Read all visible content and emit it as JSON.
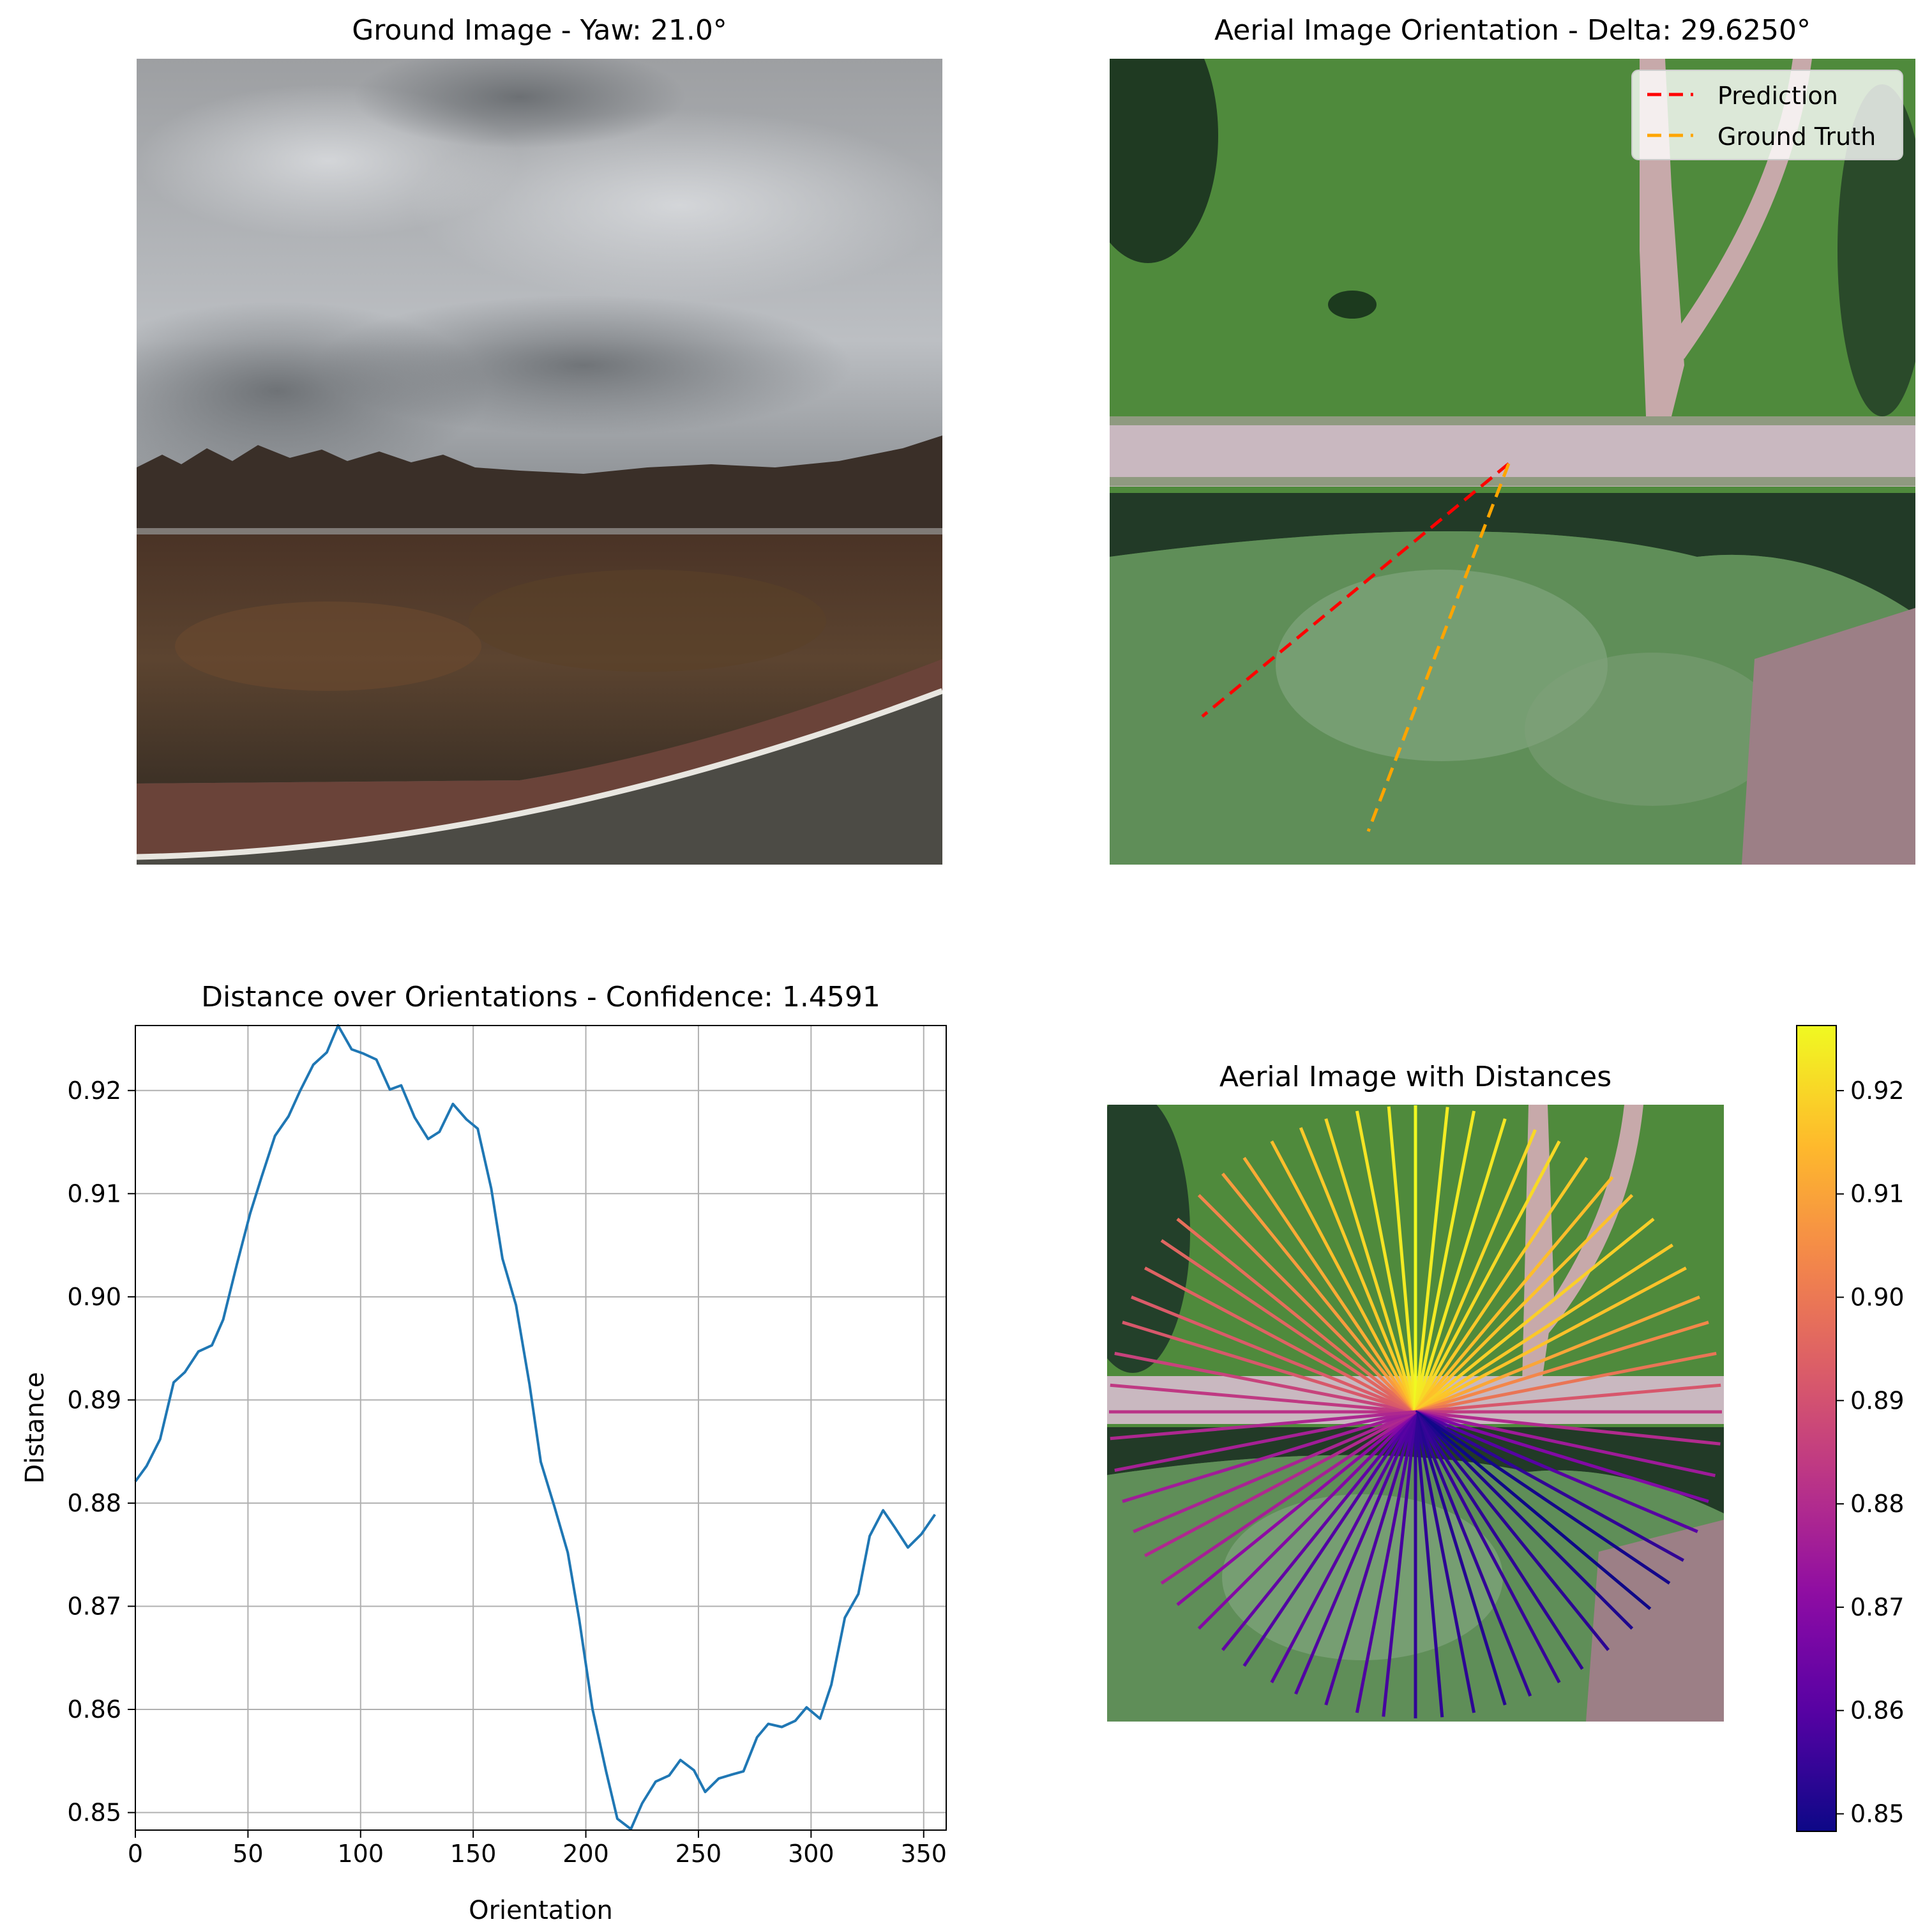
{
  "panels": {
    "ground": {
      "title": "Ground Image - Yaw: 21.0°"
    },
    "aerial": {
      "title": "Aerial Image Orientation - Delta: 29.6250°",
      "legend": [
        {
          "label": "Prediction",
          "color": "#ff0000"
        },
        {
          "label": "Ground Truth",
          "color": "#ffa500"
        }
      ]
    },
    "distance_plot": {
      "title": "Distance over Orientations - Confidence: 1.4591"
    },
    "aerial_distances": {
      "title": "Aerial Image with Distances",
      "colormap": "plasma",
      "colorbar_ticks": [
        "0.85",
        "0.86",
        "0.87",
        "0.88",
        "0.89",
        "0.90",
        "0.91",
        "0.92"
      ]
    }
  },
  "colors": {
    "line": "#1f77b4",
    "grid": "#b0b0b0",
    "grass": "#4f8a3c",
    "road": "#c9b8c0"
  },
  "chart_data": {
    "type": "line",
    "title": "Distance over Orientations - Confidence: 1.4591",
    "xlabel": "Orientation",
    "ylabel": "Distance",
    "xlim": [
      0,
      360
    ],
    "ylim": [
      0.8483,
      0.9263
    ],
    "x_ticks": [
      0,
      50,
      100,
      150,
      200,
      250,
      300,
      350
    ],
    "y_ticks": [
      0.85,
      0.86,
      0.87,
      0.88,
      0.89,
      0.9,
      0.91,
      0.92
    ],
    "y_tick_labels": [
      "0.85",
      "0.86",
      "0.87",
      "0.88",
      "0.89",
      "0.90",
      "0.91",
      "0.92"
    ],
    "grid": true,
    "series": [
      {
        "x": [
          0,
          5,
          11,
          17,
          22,
          28,
          34,
          39,
          45,
          51,
          56,
          62,
          68,
          73,
          79,
          85,
          90,
          96,
          101,
          107,
          113,
          118,
          124,
          130,
          135,
          141,
          147,
          152,
          158,
          163,
          169,
          175,
          180,
          186,
          192,
          197,
          203,
          209,
          214,
          220,
          225,
          231,
          237,
          242,
          248,
          253,
          259,
          265,
          270,
          276,
          281,
          287,
          293,
          298,
          304,
          309,
          315,
          321,
          326,
          332,
          337,
          343,
          349,
          355
        ],
        "values": [
          0.8821,
          0.8836,
          0.8862,
          0.8917,
          0.8927,
          0.8947,
          0.8953,
          0.8978,
          0.9031,
          0.9081,
          0.9116,
          0.9156,
          0.9175,
          0.9199,
          0.9225,
          0.9237,
          0.9263,
          0.924,
          0.9236,
          0.923,
          0.9201,
          0.9205,
          0.9174,
          0.9153,
          0.916,
          0.9187,
          0.9172,
          0.9163,
          0.9105,
          0.9037,
          0.8992,
          0.8915,
          0.884,
          0.8797,
          0.8752,
          0.8688,
          0.86,
          0.854,
          0.8494,
          0.8484,
          0.8509,
          0.853,
          0.8536,
          0.8551,
          0.8541,
          0.852,
          0.8533,
          0.8537,
          0.854,
          0.8573,
          0.8586,
          0.8583,
          0.8589,
          0.8602,
          0.8591,
          0.8624,
          0.8689,
          0.8712,
          0.8768,
          0.8793,
          0.8777,
          0.8757,
          0.877,
          0.8789
        ]
      }
    ]
  }
}
